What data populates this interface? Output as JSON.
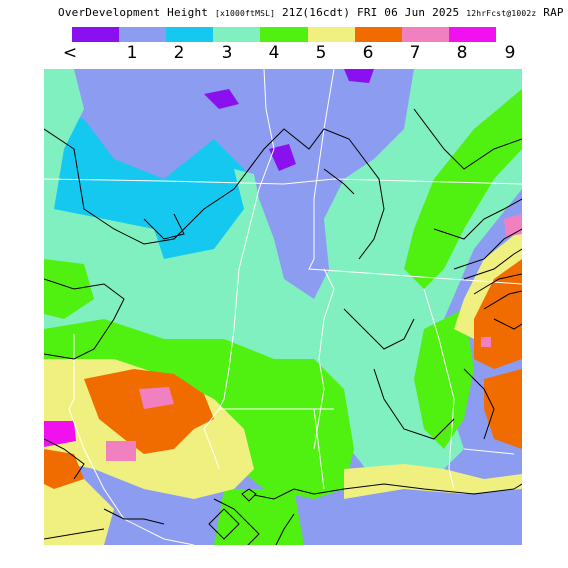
{
  "title": {
    "main": "OverDevelopment Height",
    "units": "[x1000ftMSL]",
    "valid": "21Z(16cdt) FRI 06 Jun 2025",
    "run": "12hrFcst@1002z",
    "model": "RAP"
  },
  "legend": {
    "colors": [
      "#8a10f0",
      "#8c9cf0",
      "#14c8f0",
      "#80f0c0",
      "#50f010",
      "#f0f080",
      "#f06c00",
      "#f080c0",
      "#f010f0"
    ],
    "ticks": [
      "<",
      "1",
      "2",
      "3",
      "4",
      "5",
      "6",
      "7",
      "8",
      "9"
    ]
  },
  "map": {
    "background_color": "#8c9cf0",
    "border_color": "#ffffff",
    "contour_color": "#000000"
  }
}
